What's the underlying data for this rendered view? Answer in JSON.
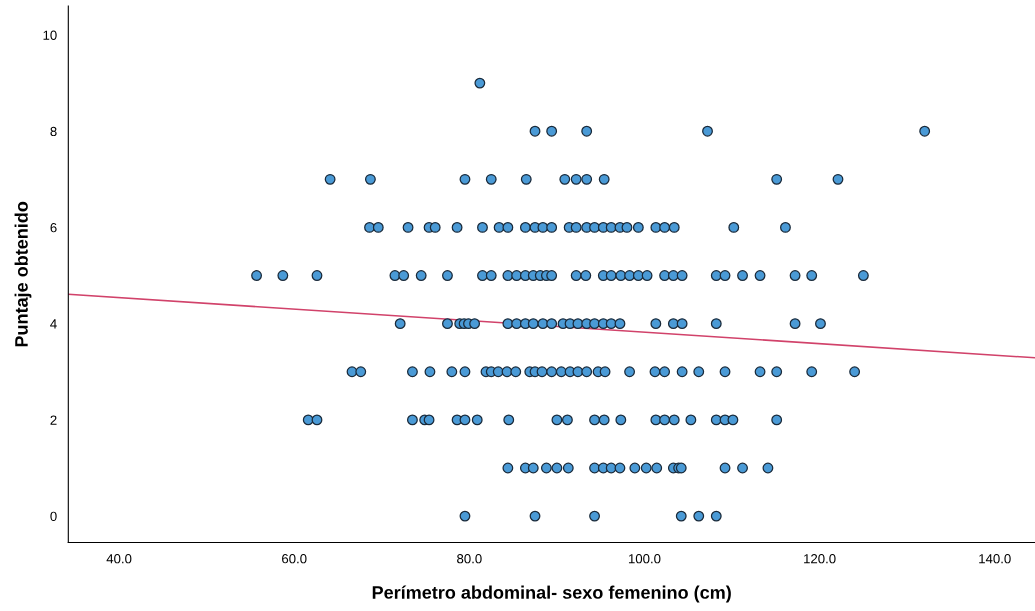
{
  "chart_data": {
    "type": "scatter",
    "xlabel": "Perímetro abdominal- sexo femenino (cm)",
    "ylabel": "Puntaje obtenido",
    "xlim": [
      34.2,
      144.6
    ],
    "ylim": [
      -0.55,
      10.6
    ],
    "xticks": [
      {
        "value": 40,
        "label": "40.0"
      },
      {
        "value": 60,
        "label": "60.0"
      },
      {
        "value": 80,
        "label": "80.0"
      },
      {
        "value": 100,
        "label": "100.0"
      },
      {
        "value": 120,
        "label": "120.0"
      },
      {
        "value": 140,
        "label": "140.0"
      }
    ],
    "yticks": [
      0,
      2,
      4,
      6,
      8,
      10
    ],
    "grid": false,
    "series": [
      {
        "color": "#4a9ad6",
        "marker": "circle",
        "x": [
          81.2,
          87.5,
          89.4,
          93.4,
          107.2,
          132.0,
          64.1,
          68.7,
          79.5,
          82.5,
          86.5,
          90.9,
          92.2,
          93.4,
          95.4,
          115.1,
          122.1,
          68.6,
          69.6,
          73.0,
          75.4,
          76.1,
          78.6,
          81.5,
          83.4,
          84.4,
          86.4,
          87.5,
          88.4,
          89.4,
          91.4,
          92.2,
          93.4,
          94.3,
          95.3,
          96.2,
          97.2,
          98.0,
          99.3,
          101.3,
          102.3,
          103.4,
          110.2,
          116.1,
          55.7,
          58.7,
          62.6,
          71.5,
          72.5,
          74.5,
          77.5,
          81.5,
          82.5,
          84.4,
          85.4,
          86.4,
          87.3,
          88.1,
          88.8,
          89.4,
          92.2,
          93.3,
          95.3,
          96.2,
          97.3,
          98.3,
          99.3,
          100.3,
          102.3,
          103.3,
          104.3,
          108.2,
          109.2,
          111.2,
          113.2,
          117.2,
          119.1,
          125.0,
          72.1,
          77.5,
          78.9,
          79.4,
          79.9,
          80.6,
          84.4,
          85.4,
          86.4,
          87.3,
          88.4,
          89.4,
          90.7,
          91.5,
          92.4,
          93.4,
          94.3,
          95.3,
          96.2,
          97.2,
          101.3,
          103.3,
          104.3,
          108.2,
          117.2,
          120.1,
          66.6,
          67.6,
          73.5,
          75.5,
          78.0,
          79.5,
          81.9,
          82.5,
          83.3,
          84.3,
          85.3,
          86.9,
          87.5,
          88.3,
          89.4,
          90.5,
          91.5,
          92.4,
          93.4,
          94.7,
          95.5,
          98.3,
          101.2,
          102.3,
          104.3,
          106.2,
          109.2,
          113.2,
          115.1,
          119.1,
          124.0,
          61.6,
          62.6,
          73.5,
          74.9,
          75.4,
          78.6,
          79.5,
          80.9,
          84.5,
          90.0,
          91.2,
          94.3,
          95.4,
          97.3,
          101.3,
          102.3,
          103.4,
          105.3,
          108.2,
          109.2,
          110.1,
          115.1,
          84.4,
          86.4,
          87.3,
          88.8,
          90.0,
          91.3,
          94.3,
          95.3,
          96.2,
          97.2,
          98.9,
          100.2,
          101.4,
          103.3,
          103.9,
          104.2,
          109.2,
          111.2,
          114.1,
          79.5,
          87.5,
          94.3,
          104.2,
          106.2,
          108.2
        ],
        "values": [
          9,
          8,
          8,
          8,
          8,
          8,
          7,
          7,
          7,
          7,
          7,
          7,
          7,
          7,
          7,
          7,
          7,
          6,
          6,
          6,
          6,
          6,
          6,
          6,
          6,
          6,
          6,
          6,
          6,
          6,
          6,
          6,
          6,
          6,
          6,
          6,
          6,
          6,
          6,
          6,
          6,
          6,
          6,
          6,
          5,
          5,
          5,
          5,
          5,
          5,
          5,
          5,
          5,
          5,
          5,
          5,
          5,
          5,
          5,
          5,
          5,
          5,
          5,
          5,
          5,
          5,
          5,
          5,
          5,
          5,
          5,
          5,
          5,
          5,
          5,
          5,
          5,
          5,
          4,
          4,
          4,
          4,
          4,
          4,
          4,
          4,
          4,
          4,
          4,
          4,
          4,
          4,
          4,
          4,
          4,
          4,
          4,
          4,
          4,
          4,
          4,
          4,
          4,
          4,
          3,
          3,
          3,
          3,
          3,
          3,
          3,
          3,
          3,
          3,
          3,
          3,
          3,
          3,
          3,
          3,
          3,
          3,
          3,
          3,
          3,
          3,
          3,
          3,
          3,
          3,
          3,
          3,
          3,
          3,
          3,
          2,
          2,
          2,
          2,
          2,
          2,
          2,
          2,
          2,
          2,
          2,
          2,
          2,
          2,
          2,
          2,
          2,
          2,
          2,
          2,
          2,
          2,
          1,
          1,
          1,
          1,
          1,
          1,
          1,
          1,
          1,
          1,
          1,
          1,
          1,
          1,
          1,
          1,
          1,
          1,
          1,
          0,
          0,
          0,
          0,
          0,
          0
        ]
      },
      {
        "type": "line",
        "marker": "none",
        "color": "#d1426a",
        "x": [
          34.2,
          144.6
        ],
        "values": [
          4.61,
          3.29
        ]
      }
    ]
  }
}
